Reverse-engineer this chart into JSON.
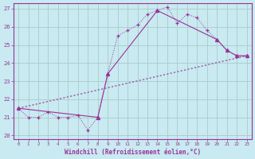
{
  "background_color": "#c8eaf0",
  "grid_color": "#aacccc",
  "line_color": "#993399",
  "title": "Windchill (Refroidissement éolien,°C)",
  "xlim": [
    -0.5,
    23.5
  ],
  "ylim": [
    19.8,
    27.3
  ],
  "yticks": [
    20,
    21,
    22,
    23,
    24,
    25,
    26,
    27
  ],
  "xticks": [
    0,
    1,
    2,
    3,
    4,
    5,
    6,
    7,
    8,
    9,
    10,
    11,
    12,
    13,
    14,
    15,
    16,
    17,
    18,
    19,
    20,
    21,
    22,
    23
  ],
  "series1_x": [
    0,
    1,
    2,
    3,
    4,
    5,
    6,
    7,
    8,
    9,
    10,
    11,
    12,
    13,
    14,
    15,
    16,
    17,
    18,
    19,
    20,
    21,
    22,
    23
  ],
  "series1_y": [
    21.5,
    21.0,
    21.0,
    21.3,
    21.0,
    21.0,
    21.1,
    20.3,
    21.0,
    23.4,
    25.5,
    25.8,
    26.1,
    26.7,
    26.9,
    27.1,
    26.2,
    26.7,
    26.5,
    25.8,
    25.3,
    24.7,
    24.4,
    24.4
  ],
  "series2_x": [
    0,
    23
  ],
  "series2_y": [
    21.5,
    24.4
  ],
  "series3_x": [
    0,
    8,
    9,
    14,
    20,
    21,
    22,
    23
  ],
  "series3_y": [
    21.5,
    21.0,
    23.4,
    26.9,
    25.3,
    24.7,
    24.4,
    24.4
  ]
}
